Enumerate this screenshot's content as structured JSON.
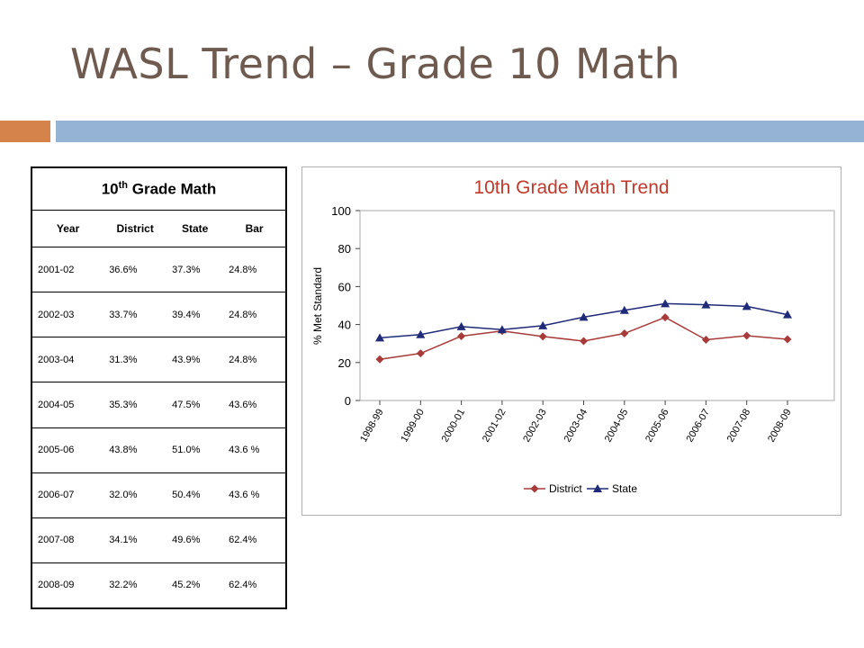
{
  "slide": {
    "title": "WASL Trend – Grade 10 Math"
  },
  "table": {
    "caption_pre": "10",
    "caption_sup": "th",
    "caption_post": " Grade Math",
    "headers": [
      "Year",
      "District",
      "State",
      "Bar"
    ],
    "rows": [
      [
        "2001-02",
        "36.6%",
        "37.3%",
        "24.8%"
      ],
      [
        "2002-03",
        "33.7%",
        "39.4%",
        "24.8%"
      ],
      [
        "2003-04",
        "31.3%",
        "43.9%",
        "24.8%"
      ],
      [
        "2004-05",
        "35.3%",
        "47.5%",
        "43.6%"
      ],
      [
        "2005-06",
        "43.8%",
        "51.0%",
        "43.6 %"
      ],
      [
        "2006-07",
        "32.0%",
        "50.4%",
        "43.6 %"
      ],
      [
        "2007-08",
        "34.1%",
        "49.6%",
        "62.4%"
      ],
      [
        "2008-09",
        "32.2%",
        "45.2%",
        "62.4%"
      ]
    ]
  },
  "chart_data": {
    "type": "line",
    "title": "10th Grade Math Trend",
    "xlabel": "",
    "ylabel": "% Met Standard",
    "ylim": [
      0,
      100
    ],
    "yticks": [
      0,
      20,
      40,
      60,
      80,
      100
    ],
    "grid": false,
    "legend": "bottom",
    "categories": [
      "1998-99",
      "1999-00",
      "2000-01",
      "2001-02",
      "2002-03",
      "2003-04",
      "2004-05",
      "2005-06",
      "2006-07",
      "2007-08",
      "2008-09"
    ],
    "series": [
      {
        "name": "District",
        "color": "#a93a3a",
        "marker": "diamond",
        "values": [
          21.7,
          24.8,
          33.9,
          36.6,
          33.7,
          31.3,
          35.3,
          43.8,
          32.0,
          34.1,
          32.2
        ]
      },
      {
        "name": "State",
        "color": "#1f2a78",
        "marker": "triangle",
        "values": [
          33.0,
          34.7,
          38.9,
          37.3,
          39.4,
          43.9,
          47.5,
          51.0,
          50.4,
          49.6,
          45.2
        ]
      }
    ],
    "title_color": "#c0392b"
  }
}
